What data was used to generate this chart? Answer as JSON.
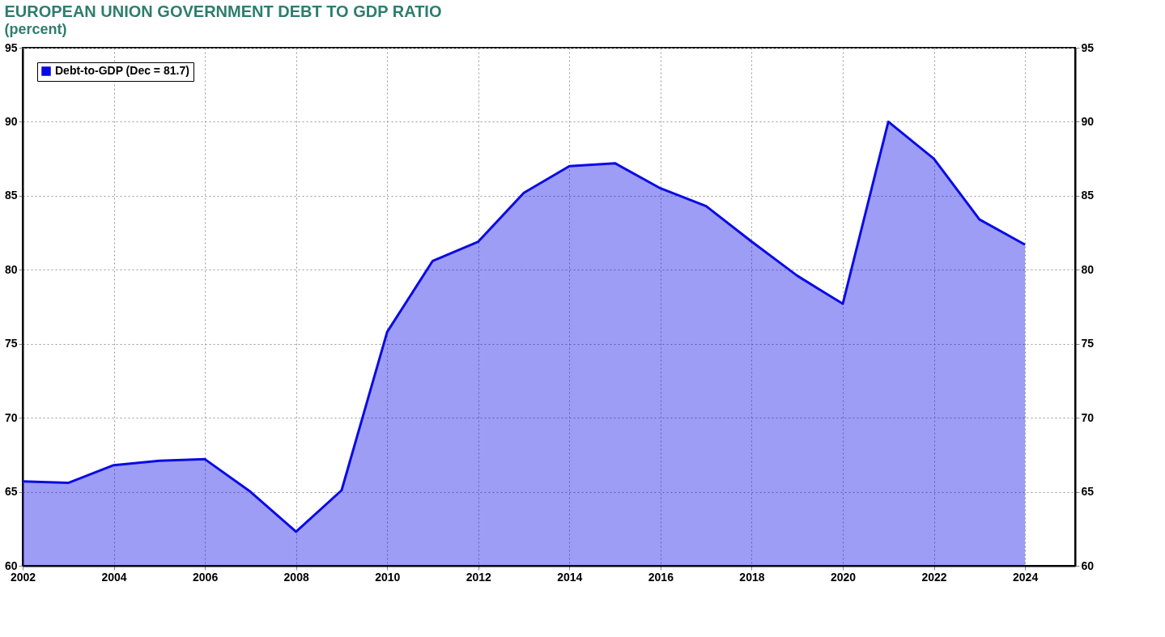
{
  "chart_data": {
    "type": "area",
    "title": "EUROPEAN UNION GOVERNMENT DEBT TO GDP RATIO",
    "subtitle": "(percent)",
    "x": [
      2002,
      2003,
      2004,
      2005,
      2006,
      2007,
      2008,
      2009,
      2010,
      2011,
      2012,
      2013,
      2014,
      2015,
      2016,
      2017,
      2018,
      2019,
      2020,
      2021,
      2022,
      2023,
      2024
    ],
    "series": [
      {
        "name": "Debt-to-GDP (Dec = 81.7)",
        "color": "#0a0ae6",
        "values": [
          65.7,
          65.6,
          66.8,
          67.1,
          67.2,
          65.0,
          62.3,
          65.1,
          75.8,
          80.6,
          81.9,
          85.2,
          87.0,
          87.2,
          85.5,
          84.3,
          81.9,
          79.6,
          77.7,
          90.0,
          87.5,
          83.4,
          81.7
        ]
      }
    ],
    "xlim": [
      2002,
      2025.1
    ],
    "xticks": [
      2002,
      2004,
      2006,
      2008,
      2010,
      2012,
      2014,
      2016,
      2018,
      2020,
      2022,
      2024
    ],
    "ylim": [
      60,
      95
    ],
    "yticks": [
      60,
      65,
      70,
      75,
      80,
      85,
      90,
      95
    ],
    "y2lim": [
      60,
      95
    ],
    "y2ticks": [
      60,
      65,
      70,
      75,
      80,
      85,
      90,
      95
    ],
    "grid": true,
    "legend": "top left"
  }
}
